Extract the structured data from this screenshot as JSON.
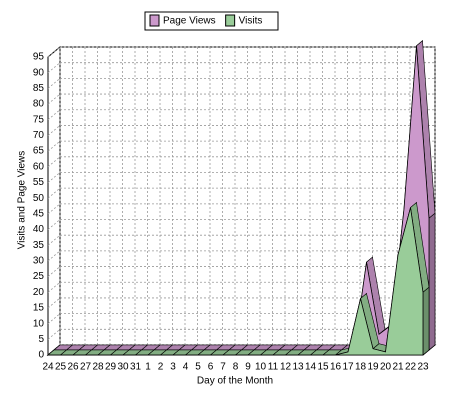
{
  "chart_data": {
    "type": "area3d",
    "x_label": "Day of the Month",
    "y_label": "Visits and Page Views",
    "categories": [
      "24",
      "25",
      "26",
      "27",
      "28",
      "29",
      "30",
      "31",
      "1",
      "2",
      "3",
      "4",
      "5",
      "6",
      "7",
      "8",
      "9",
      "10",
      "11",
      "12",
      "13",
      "14",
      "15",
      "16",
      "17",
      "18",
      "19",
      "20",
      "21",
      "22",
      "23"
    ],
    "series": [
      {
        "name": "Page Views",
        "color": "#cc99cc",
        "values": [
          0,
          0,
          0,
          0,
          0,
          0,
          0,
          0,
          0,
          0,
          0,
          0,
          0,
          0,
          0,
          0,
          0,
          0,
          0,
          0,
          0,
          0,
          0,
          0,
          0,
          28,
          5,
          8,
          45,
          97,
          42
        ]
      },
      {
        "name": "Visits",
        "color": "#99cc99",
        "values": [
          0,
          0,
          0,
          0,
          0,
          0,
          0,
          0,
          0,
          0,
          0,
          0,
          0,
          0,
          0,
          0,
          0,
          0,
          0,
          0,
          0,
          0,
          0,
          0,
          1,
          18,
          2,
          1,
          32,
          47,
          20
        ]
      }
    ],
    "ylim": [
      0,
      95
    ],
    "yticks": [
      0,
      5,
      10,
      15,
      20,
      25,
      30,
      35,
      40,
      45,
      50,
      55,
      60,
      65,
      70,
      75,
      80,
      85,
      90,
      95
    ],
    "grid": true
  }
}
